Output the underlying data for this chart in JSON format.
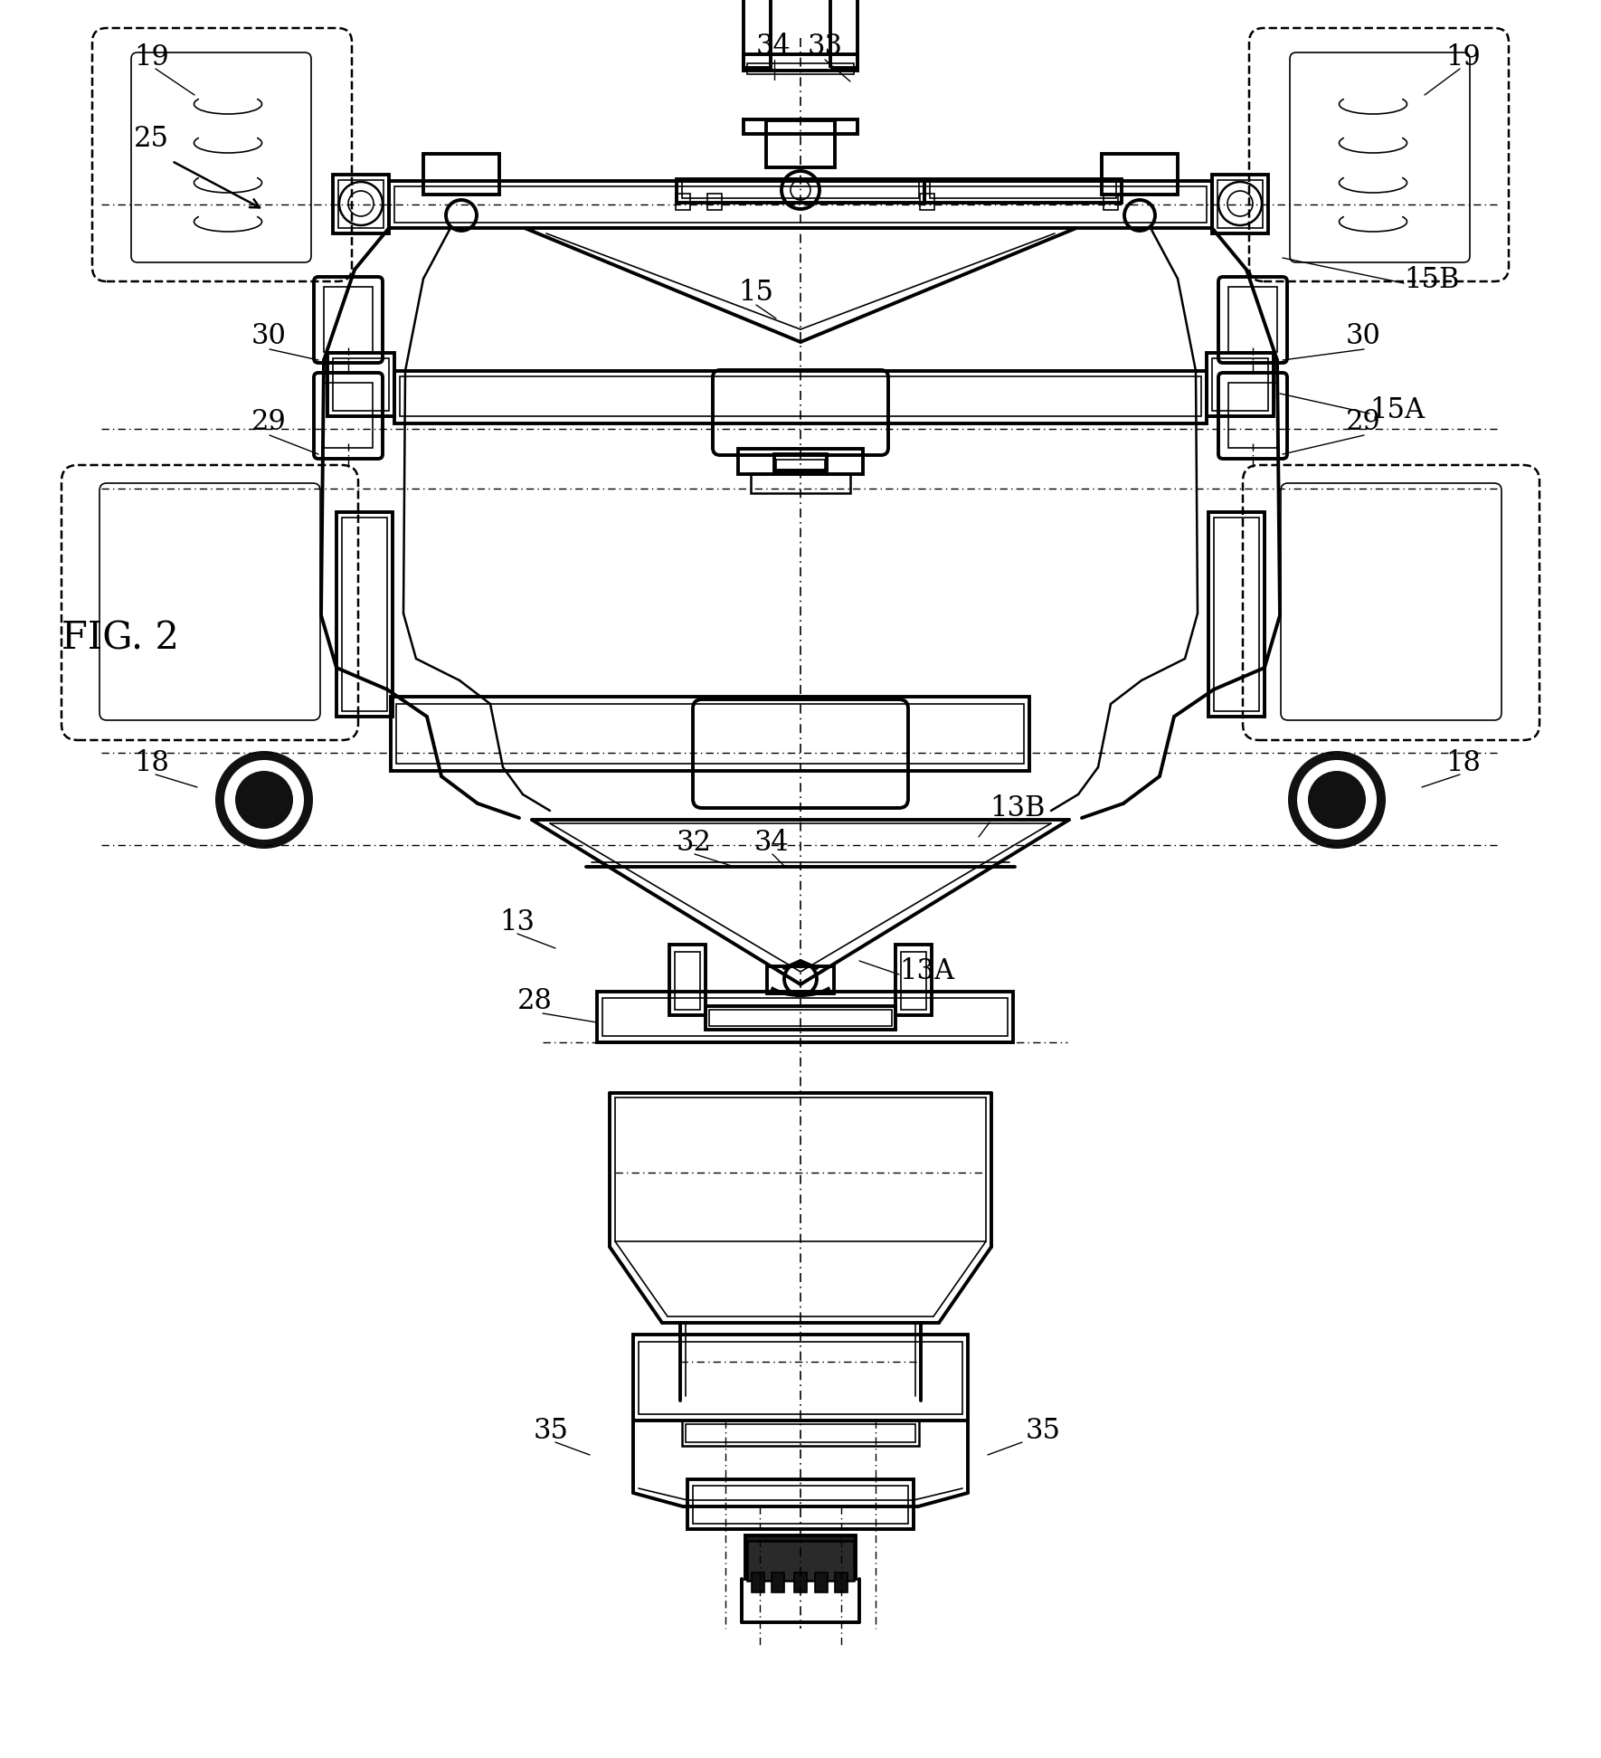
{
  "bg_color": "#ffffff",
  "line_color": "#000000",
  "labels": {
    "fig": "FIG. 2",
    "arrow_label": "25",
    "label_19_l": "19",
    "label_19_r": "19",
    "label_18_l": "18",
    "label_18_r": "18",
    "label_13": "13",
    "label_13A": "13A",
    "label_13B": "13B",
    "label_15": "15",
    "label_15A": "15A",
    "label_15B": "15B",
    "label_28": "28",
    "label_29_l": "29",
    "label_30_l": "30",
    "label_29_r": "29",
    "label_30_r": "30",
    "label_32": "32",
    "label_33": "33",
    "label_34_top": "34",
    "label_34_bot": "34",
    "label_35_l": "35",
    "label_35_r": "35"
  },
  "figsize": [
    17.7,
    19.43
  ],
  "dpi": 100
}
